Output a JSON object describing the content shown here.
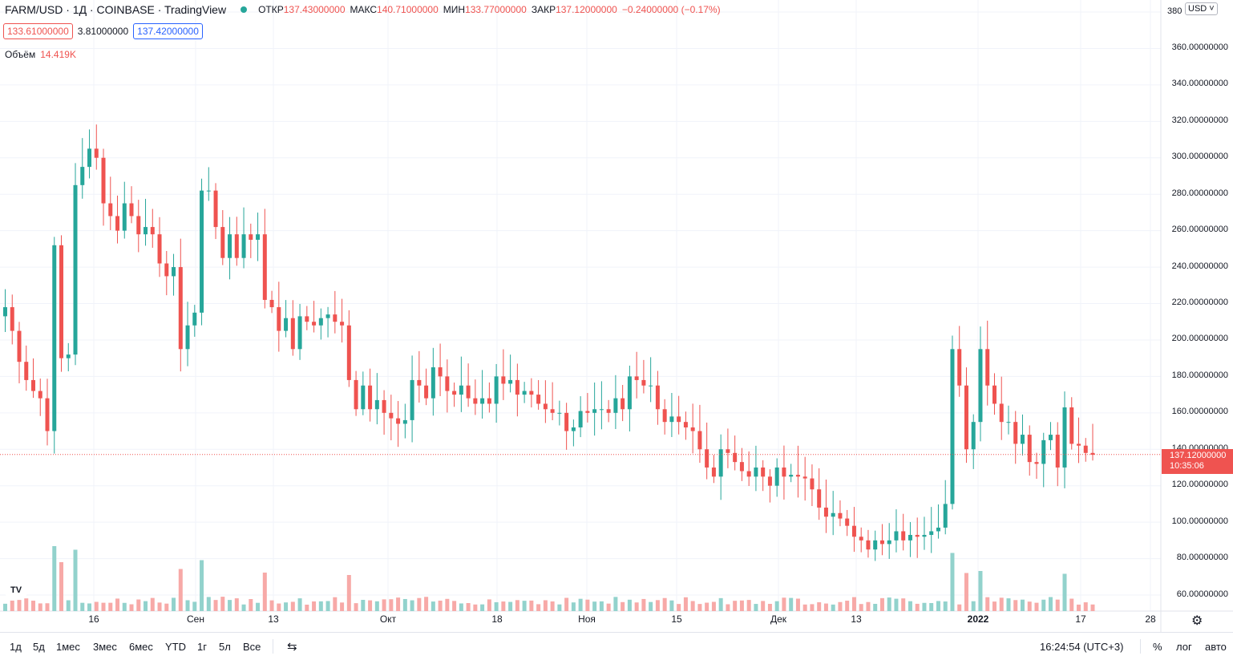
{
  "header": {
    "symbol": "FARM/USD · 1Д · COINBASE · TradingView",
    "open_label": "ОТКР",
    "open": "137.43000000",
    "high_label": "МАКС",
    "high": "140.71000000",
    "low_label": "МИН",
    "low": "133.77000000",
    "close_label": "ЗАКР",
    "close": "137.12000000",
    "change": "−0.24000000 (−0.17%)"
  },
  "bidask": {
    "bid": "133.61000000",
    "spread": "3.81000000",
    "ask": "137.42000000"
  },
  "volume": {
    "label": "Объём",
    "value": "14.419K"
  },
  "currency": "USD",
  "current_price": {
    "price": "137.12000000",
    "countdown": "10:35:06"
  },
  "y_ticks": [
    "380",
    "360.00000000",
    "340.00000000",
    "320.00000000",
    "300.00000000",
    "280.00000000",
    "260.00000000",
    "240.00000000",
    "220.00000000",
    "200.00000000",
    "180.00000000",
    "160.00000000",
    "140.00000000",
    "120.00000000",
    "100.00000000",
    "80.00000000",
    "60.00000000"
  ],
  "x_ticks": [
    "16",
    "Сен",
    "13",
    "Окт",
    "18",
    "Ноя",
    "15",
    "Дек",
    "13",
    "2022",
    "17",
    "28"
  ],
  "timeframes": [
    "1д",
    "5д",
    "1мес",
    "3мес",
    "6мес",
    "YTD",
    "1г",
    "5л",
    "Все"
  ],
  "clock": "16:24:54 (UTC+3)",
  "scale_opts": [
    "%",
    "лог",
    "авто"
  ],
  "colors": {
    "up": "#26a69a",
    "down": "#ef5350",
    "up_vol": "#92d2cc",
    "down_vol": "#f7a9a7"
  },
  "chart_data": {
    "type": "candlestick",
    "ylim": [
      50,
      380
    ],
    "closes": [
      218,
      205,
      188,
      178,
      172,
      168,
      150,
      252,
      190,
      192,
      285,
      295,
      305,
      300,
      275,
      268,
      260,
      275,
      268,
      258,
      262,
      258,
      242,
      235,
      240,
      195,
      208,
      215,
      282,
      282,
      262,
      245,
      258,
      245,
      258,
      255,
      258,
      222,
      218,
      205,
      212,
      195,
      213,
      210,
      208,
      212,
      214,
      210,
      208,
      178,
      162,
      175,
      162,
      167,
      160,
      157,
      154,
      156,
      178,
      175,
      168,
      185,
      180,
      172,
      170,
      175,
      168,
      165,
      168,
      165,
      180,
      176,
      178,
      170,
      172,
      170,
      165,
      162,
      160,
      160,
      150,
      152,
      161,
      160,
      162,
      162,
      160,
      168,
      162,
      180,
      178,
      175,
      175,
      162,
      155,
      158,
      155,
      152,
      150,
      140,
      130,
      125,
      140,
      138,
      133,
      128,
      125,
      130,
      125,
      120,
      130,
      125,
      126,
      125,
      124,
      118,
      108,
      103,
      105,
      102,
      98,
      92,
      90,
      85,
      90,
      88,
      90,
      95,
      90,
      93,
      92,
      93,
      95,
      97,
      110,
      195,
      175,
      140,
      155,
      195,
      175,
      165,
      155,
      155,
      143,
      148,
      133,
      132,
      145,
      148,
      130,
      163,
      143,
      142,
      138,
      137
    ]
  }
}
